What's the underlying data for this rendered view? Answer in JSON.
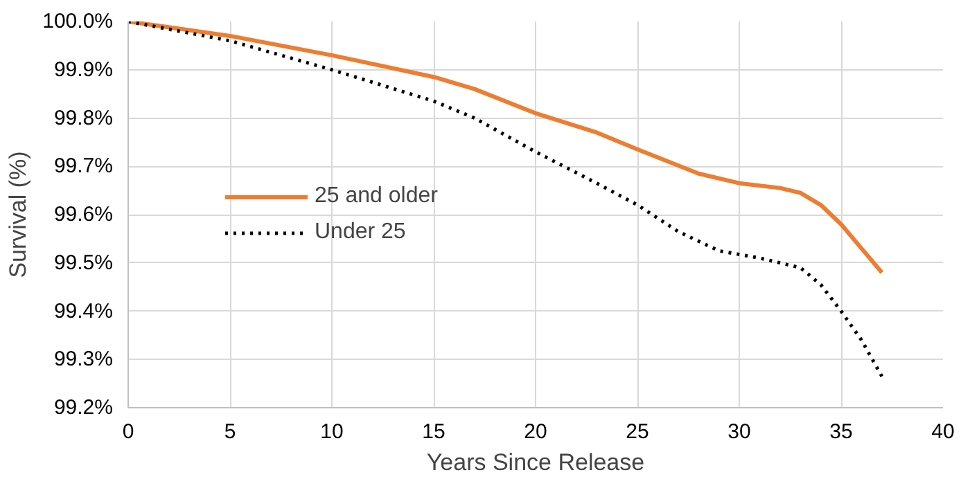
{
  "chart_data": {
    "type": "line",
    "xlabel": "Years Since Release",
    "ylabel": "Survival (%)",
    "xlim": [
      0,
      40
    ],
    "xticks": [
      0,
      5,
      10,
      15,
      20,
      25,
      30,
      35,
      40
    ],
    "ylim": [
      99.2,
      100.0
    ],
    "yticks": [
      {
        "value": 99.2,
        "label": "99.2%"
      },
      {
        "value": 99.3,
        "label": "99.3%"
      },
      {
        "value": 99.4,
        "label": "99.4%"
      },
      {
        "value": 99.5,
        "label": "99.5%"
      },
      {
        "value": 99.6,
        "label": "99.6%"
      },
      {
        "value": 99.7,
        "label": "99.7%"
      },
      {
        "value": 99.8,
        "label": "99.8%"
      },
      {
        "value": 99.9,
        "label": "99.9%"
      },
      {
        "value": 100.0,
        "label": "100.0%"
      }
    ],
    "grid": true,
    "legend": "center left",
    "series": [
      {
        "name": "25 and older",
        "color": "#ed7d31",
        "line_style": "solid",
        "x": [
          0,
          5,
          10,
          15,
          17,
          20,
          23,
          25,
          28,
          30,
          32,
          33,
          34,
          35,
          36,
          37
        ],
        "values": [
          100.0,
          99.97,
          99.93,
          99.885,
          99.86,
          99.81,
          99.77,
          99.735,
          99.685,
          99.665,
          99.655,
          99.645,
          99.62,
          99.58,
          99.53,
          99.48
        ]
      },
      {
        "name": "Under 25",
        "color": "#000000",
        "line_style": "dotted",
        "x": [
          0,
          5,
          10,
          15,
          17,
          20,
          23,
          25,
          27,
          29,
          31,
          33,
          34,
          35,
          36,
          37
        ],
        "values": [
          100.0,
          99.96,
          99.9,
          99.835,
          99.8,
          99.73,
          99.665,
          99.62,
          99.565,
          99.525,
          99.51,
          99.49,
          99.455,
          99.4,
          99.34,
          99.265
        ]
      }
    ]
  }
}
